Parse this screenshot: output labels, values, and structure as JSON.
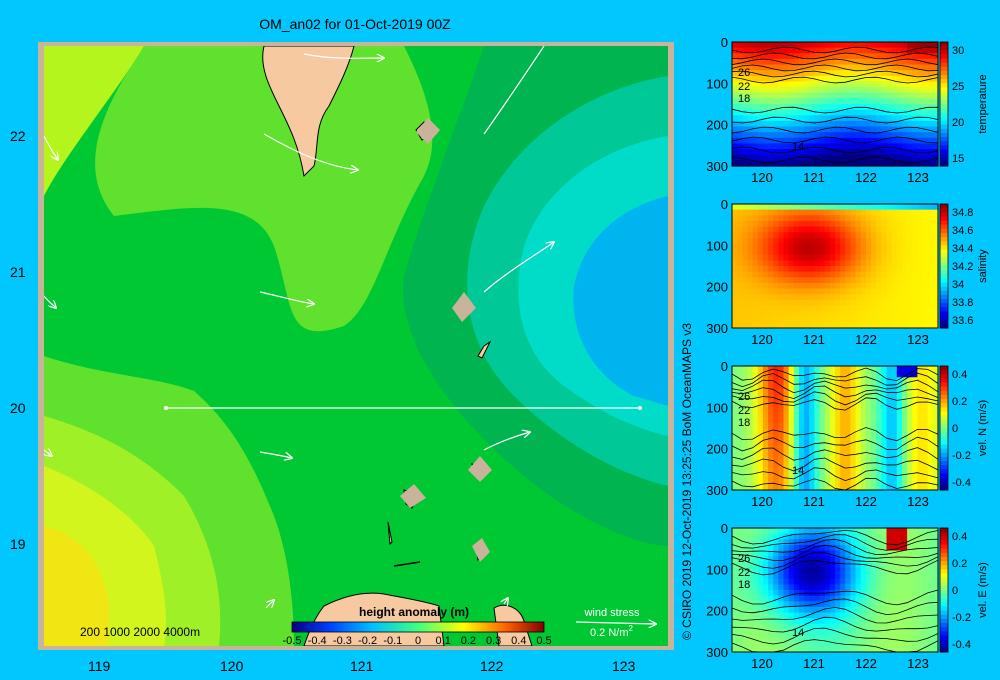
{
  "title": "OM_an02 for 01-Oct-2019 00Z",
  "colors": {
    "background": "#00c8ff",
    "land": "#f7c9a0",
    "shelf": "#c9b39a"
  },
  "map": {
    "x_ticks": [
      "119",
      "120",
      "121",
      "122",
      "123"
    ],
    "y_ticks": [
      "22",
      "21",
      "20",
      "19"
    ],
    "depth_legend": "200  1000  2000  4000m",
    "colorbar_title": "height anomaly (m)",
    "colorbar_ticks": [
      "-0.5",
      "-0.4",
      "-0.3",
      "-0.2",
      "-0.1",
      "0",
      "0.1",
      "0.2",
      "0.3",
      "0.4",
      "0.5"
    ],
    "wind_label": "wind stress",
    "wind_value": "0.2 N/m",
    "wind_unit_sup": "2"
  },
  "credit": "© CSIRO 2019  12-Oct-2019 13:25:25 BoM OceanMAPS v3",
  "chart_data": [
    {
      "type": "heatmap",
      "title": "OM_an02 for 01-Oct-2019 00Z",
      "variable": "height anomaly (m)",
      "xlim": [
        118.5,
        123.5
      ],
      "ylim": [
        18.3,
        22.7
      ],
      "clim": [
        -0.5,
        0.5
      ],
      "features": [
        {
          "label": "positive anomaly (yellow)",
          "lon": 118.6,
          "lat": 18.9,
          "value": 0.12
        },
        {
          "label": "negative anomaly (blue)",
          "lon": 122.7,
          "lat": 20.9,
          "value": -0.2
        }
      ],
      "section_line": {
        "lon": [
          119.5,
          123.2
        ],
        "lat": [
          20.0,
          20.0
        ]
      }
    },
    {
      "type": "heatmap",
      "ylabel": "temperature",
      "y_ticks": [
        "0",
        "100",
        "200",
        "300"
      ],
      "x_ticks": [
        "120",
        "121",
        "122",
        "123"
      ],
      "cb_ticks": [
        "30",
        "25",
        "20",
        "15"
      ],
      "contour_labels": [
        "26",
        "22",
        "18",
        "14"
      ],
      "clim": [
        13,
        31
      ]
    },
    {
      "type": "heatmap",
      "ylabel": "salinity",
      "y_ticks": [
        "0",
        "100",
        "200",
        "300"
      ],
      "x_ticks": [
        "120",
        "121",
        "122",
        "123"
      ],
      "cb_ticks": [
        "34.8",
        "34.6",
        "34.4",
        "34.2",
        "34",
        "33.8",
        "33.6"
      ],
      "contour_labels": [],
      "clim": [
        33.5,
        34.9
      ]
    },
    {
      "type": "heatmap",
      "ylabel": "vel. N (m/s)",
      "y_ticks": [
        "0",
        "100",
        "200",
        "300"
      ],
      "x_ticks": [
        "120",
        "121",
        "122",
        "123"
      ],
      "cb_ticks": [
        "0.4",
        "0.2",
        "0",
        "-0.2",
        "-0.4"
      ],
      "contour_labels": [
        "26",
        "22",
        "18",
        "14"
      ],
      "clim": [
        -0.45,
        0.45
      ]
    },
    {
      "type": "heatmap",
      "ylabel": "vel. E (m/s)",
      "y_ticks": [
        "0",
        "100",
        "200",
        "300"
      ],
      "x_ticks": [
        "120",
        "121",
        "122",
        "123"
      ],
      "cb_ticks": [
        "0.4",
        "0.2",
        "0",
        "-0.2",
        "-0.4"
      ],
      "contour_labels": [
        "26",
        "22",
        "18",
        "14"
      ],
      "clim": [
        -0.45,
        0.45
      ]
    }
  ]
}
